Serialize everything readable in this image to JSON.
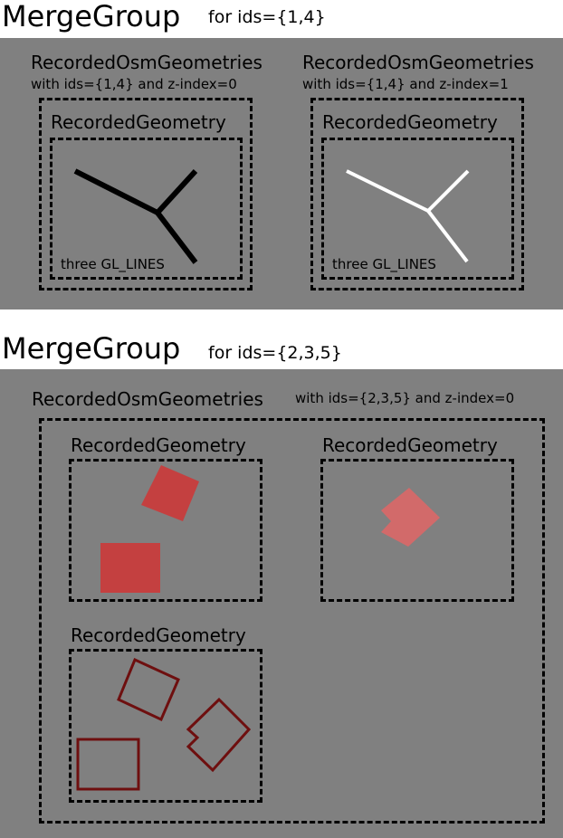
{
  "group1": {
    "title": "MergeGroup",
    "ids_label": "for ids={1,4}",
    "left": {
      "title": "RecordedOsmGeometries",
      "subtitle": "with ids={1,4} and z-index=0",
      "geometry_title": "RecordedGeometry",
      "note": "three GL_LINES",
      "line_color": "#000000"
    },
    "right": {
      "title": "RecordedOsmGeometries",
      "subtitle": "with ids={1,4} and z-index=1",
      "geometry_title": "RecordedGeometry",
      "note": "three GL_LINES",
      "line_color": "#ffffff"
    }
  },
  "group2": {
    "title": "MergeGroup",
    "ids_label": "for ids={2,3,5}",
    "osm_title": "RecordedOsmGeometries",
    "osm_subtitle": "with ids={2,3,5} and z-index=0",
    "geom_a_title": "RecordedGeometry",
    "geom_b_title": "RecordedGeometry",
    "geom_c_title": "RecordedGeometry",
    "fill_color": "#c44040",
    "light_fill_color": "#d26a6a",
    "outline_color": "#6e0f0f"
  },
  "colors": {
    "panel": "#808080",
    "background": "#ffffff"
  }
}
